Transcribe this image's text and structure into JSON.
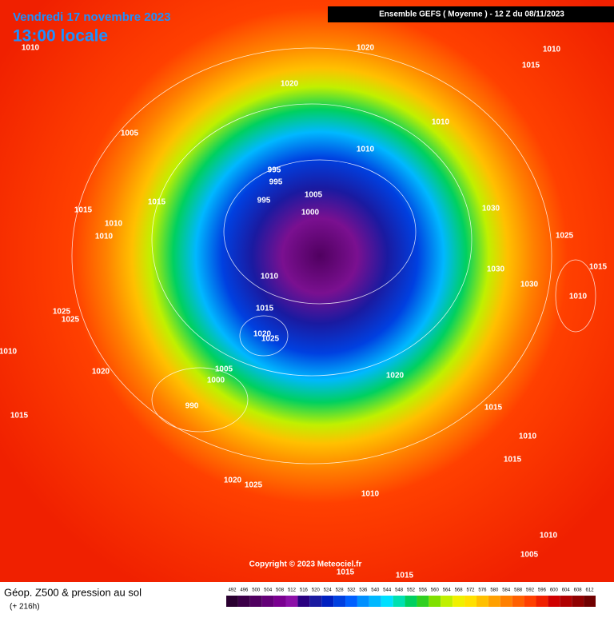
{
  "header": {
    "date": "Vendredi 17 novembre 2023",
    "time": "13:00 locale",
    "model": "Ensemble GEFS  ( Moyenne )  -  12 Z du 08/11/2023"
  },
  "copyright": "Copyright © 2023 Meteociel.fr",
  "legend": {
    "title": "Géop. Z500 & pression au sol",
    "lead": "(+ 216h)"
  },
  "scale": {
    "labels": [
      492,
      496,
      500,
      504,
      508,
      512,
      516,
      520,
      524,
      528,
      532,
      536,
      540,
      544,
      548,
      552,
      556,
      560,
      564,
      568,
      572,
      576,
      580,
      584,
      588,
      592,
      596,
      600,
      604,
      608,
      612
    ],
    "colors": [
      "#2a0030",
      "#3c0048",
      "#500060",
      "#640078",
      "#7a0090",
      "#8c10a8",
      "#2a0080",
      "#1a1aa0",
      "#0020c0",
      "#0040e0",
      "#0060ff",
      "#0090ff",
      "#00b8ff",
      "#00e0ff",
      "#00e0b0",
      "#00d060",
      "#30d020",
      "#80e000",
      "#c0f000",
      "#f0f000",
      "#ffe000",
      "#ffc000",
      "#ffa000",
      "#ff8000",
      "#ff6000",
      "#ff4000",
      "#f02000",
      "#d00000",
      "#b00000",
      "#900000",
      "#700000"
    ]
  },
  "isobars": [
    1010,
    1020,
    1010,
    1015,
    1020,
    1010,
    1005,
    1010,
    995,
    995,
    1005,
    995,
    1015,
    1015,
    1030,
    1000,
    1010,
    1010,
    1025,
    1015,
    1030,
    1010,
    1030,
    1010,
    1025,
    1025,
    1015,
    1020,
    1025,
    1010,
    1005,
    1020,
    1020,
    1000,
    990,
    1015,
    1015,
    1010,
    1015,
    1020,
    1025,
    1010,
    1010,
    1005,
    1015,
    1015
  ]
}
